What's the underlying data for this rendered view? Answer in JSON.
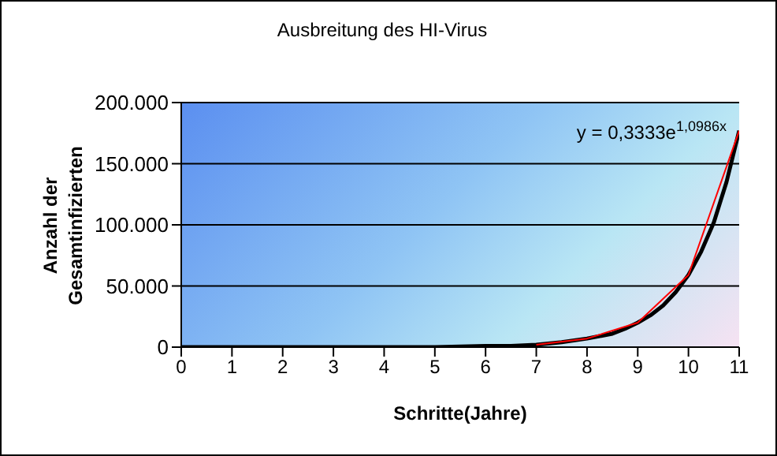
{
  "chart_data": {
    "type": "line",
    "title": "Ausbreitung des HI-Virus",
    "xlabel": "Schritte(Jahre)",
    "ylabel": "Anzahl der Gesamtinfizierten",
    "annotations": [
      "y = 0,3333e$^{1,0986x}$"
    ],
    "series": [
      {
        "type": "line",
        "color": "#000000",
        "x": [
          0,
          1,
          2,
          3,
          4,
          5,
          6,
          6.5,
          7,
          7.5,
          8,
          8.25,
          8.5,
          8.75,
          9,
          9.25,
          9.5,
          9.75,
          10,
          10.25,
          10.5,
          10.75,
          11
        ],
        "values": [
          0,
          0,
          0,
          0,
          0,
          0,
          1000,
          1000,
          2000,
          4000,
          7000,
          9000,
          11000,
          15000,
          20000,
          26000,
          34000,
          45000,
          59000,
          78000,
          102000,
          135000,
          177000
        ]
      },
      {
        "color": "#ff0000",
        "x": [
          7,
          8,
          9,
          10,
          11
        ],
        "values": [
          2000,
          7000,
          20000,
          59000,
          177000
        ]
      }
    ],
    "xlim": [
      0,
      11
    ],
    "xticks": [
      0,
      1,
      2,
      3,
      4,
      5,
      6,
      7,
      8,
      9,
      10,
      11
    ],
    "ylim": [
      0,
      200000
    ],
    "yticks": [
      {
        "value": 0,
        "label": "0"
      },
      {
        "value": 50000,
        "label": "50.000"
      },
      {
        "value": 100000,
        "label": "100.000"
      },
      {
        "value": 150000,
        "label": "150.000"
      },
      {
        "value": 200000,
        "label": "200.000"
      }
    ],
    "grid": "y",
    "marker": "none"
  }
}
